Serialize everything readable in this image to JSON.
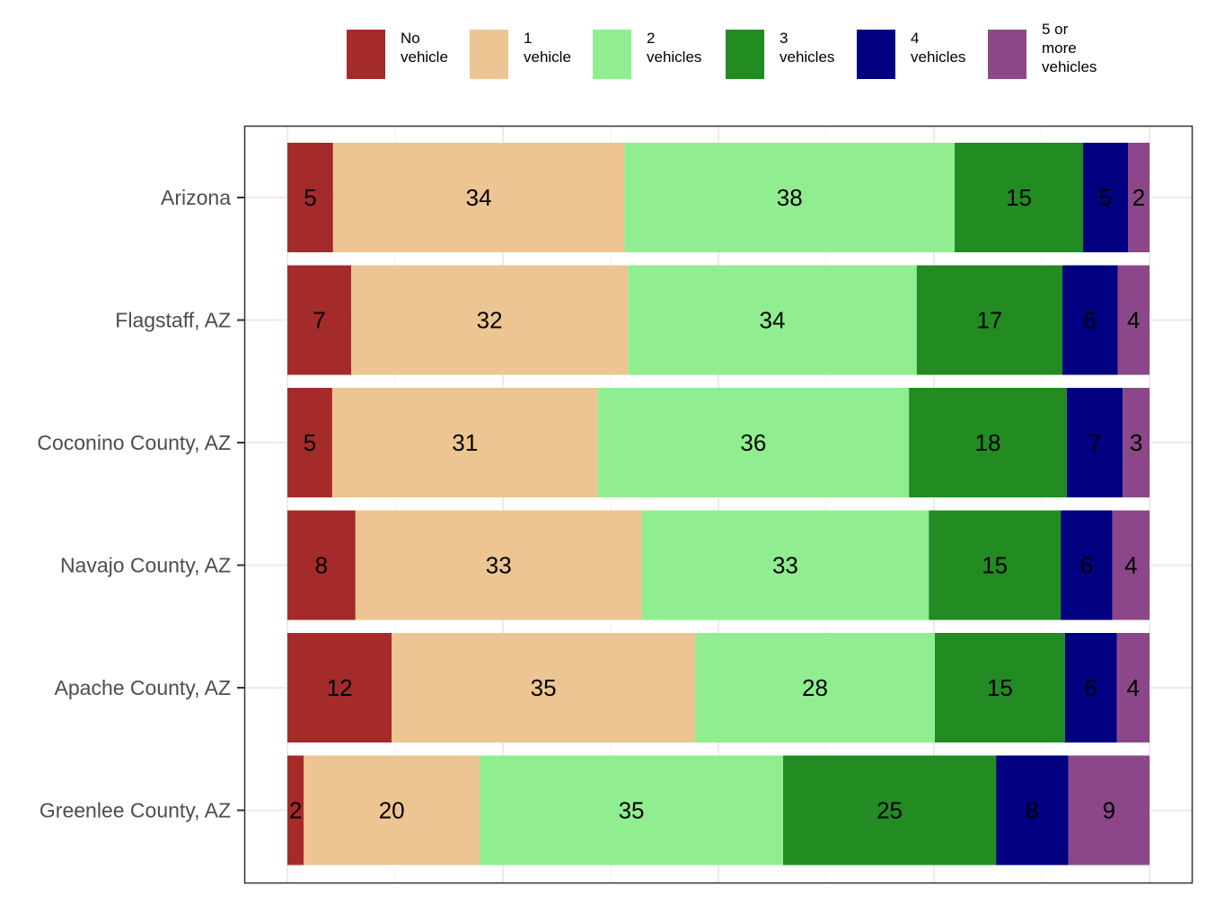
{
  "chart_data": {
    "type": "bar",
    "orientation": "horizontal",
    "stacked": true,
    "normalized": true,
    "categories": [
      "Arizona",
      "Flagstaff, AZ",
      "Coconino County, AZ",
      "Navajo County, AZ",
      "Apache County, AZ",
      "Greenlee County, AZ"
    ],
    "series": [
      {
        "name": "No\nvehicle",
        "color": "#A52A2A",
        "values": [
          5,
          7,
          5,
          8,
          12,
          2
        ],
        "shares": [
          5.3,
          7.4,
          5.2,
          7.9,
          12.1,
          1.9
        ]
      },
      {
        "name": "1\nvehicle",
        "color": "#EDC592",
        "values": [
          34,
          32,
          31,
          33,
          35,
          20
        ],
        "shares": [
          33.8,
          32.1,
          30.8,
          33.2,
          35.2,
          20.4
        ]
      },
      {
        "name": "2\nvehicles",
        "color": "#90EE90",
        "values": [
          38,
          34,
          36,
          33,
          28,
          35
        ],
        "shares": [
          38.3,
          33.5,
          36.1,
          33.3,
          27.8,
          35.2
        ]
      },
      {
        "name": "3\nvehicles",
        "color": "#228B22",
        "values": [
          15,
          17,
          18,
          15,
          15,
          25
        ],
        "shares": [
          14.9,
          16.9,
          18.3,
          15.3,
          15.1,
          24.7
        ]
      },
      {
        "name": "4\nvehicles",
        "color": "#000080",
        "values": [
          5,
          6,
          7,
          6,
          6,
          8
        ],
        "shares": [
          5.2,
          6.4,
          6.5,
          6.0,
          6.0,
          8.4
        ]
      },
      {
        "name": "5 or\nmore\nvehicles",
        "color": "#8B4789",
        "values": [
          2,
          4,
          3,
          4,
          4,
          9
        ],
        "shares": [
          2.5,
          3.7,
          3.1,
          4.3,
          3.8,
          9.4
        ]
      }
    ],
    "xlim": [
      0,
      100
    ],
    "title": "",
    "xlabel": "",
    "ylabel": "",
    "legend_position": "top",
    "grid": true
  }
}
